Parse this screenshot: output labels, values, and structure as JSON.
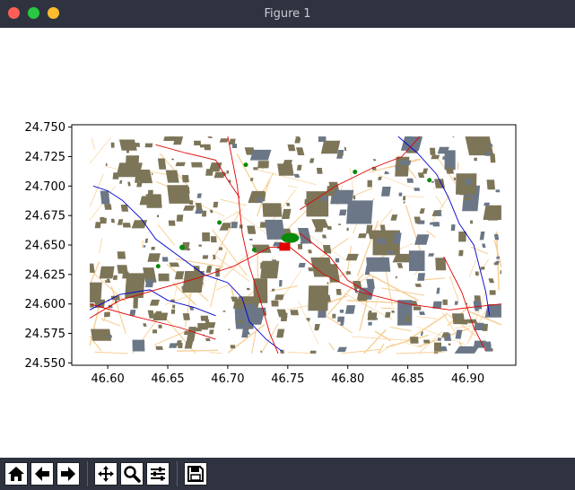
{
  "window": {
    "title": "Figure 1",
    "controls": [
      {
        "name": "close",
        "color": "#ff5f57"
      },
      {
        "name": "minimize",
        "color": "#28c840"
      },
      {
        "name": "zoom",
        "color": "#febc2e"
      }
    ]
  },
  "chart_data": {
    "type": "scatter",
    "title": "",
    "xlabel": "",
    "ylabel": "",
    "xlim": [
      46.57,
      46.94
    ],
    "ylim": [
      24.548,
      24.752
    ],
    "x_ticks": [
      "46.60",
      "46.65",
      "46.70",
      "46.75",
      "46.80",
      "46.85",
      "46.90"
    ],
    "y_ticks": [
      "24.750",
      "24.725",
      "24.700",
      "24.675",
      "24.650",
      "24.625",
      "24.600",
      "24.575",
      "24.550"
    ],
    "description_colors": {
      "buildings": "#7d7558",
      "blocks": "#6b7787",
      "roads": "#f7cf94",
      "major_roads": "#e00000",
      "rivers": "#0000cc",
      "parks": "#0a8a0a"
    },
    "extent": {
      "x": [
        46.585,
        46.928
      ],
      "y": [
        24.558,
        24.742
      ]
    }
  },
  "toolbar": {
    "buttons": [
      {
        "name": "home-button",
        "icon": "home-icon"
      },
      {
        "name": "back-button",
        "icon": "arrow-left-icon"
      },
      {
        "name": "forward-button",
        "icon": "arrow-right-icon"
      },
      {
        "name": "pan-button",
        "icon": "move-icon"
      },
      {
        "name": "zoom-button",
        "icon": "magnifier-icon"
      },
      {
        "name": "configure-subplots-button",
        "icon": "sliders-icon"
      },
      {
        "name": "save-button",
        "icon": "floppy-icon"
      }
    ]
  }
}
